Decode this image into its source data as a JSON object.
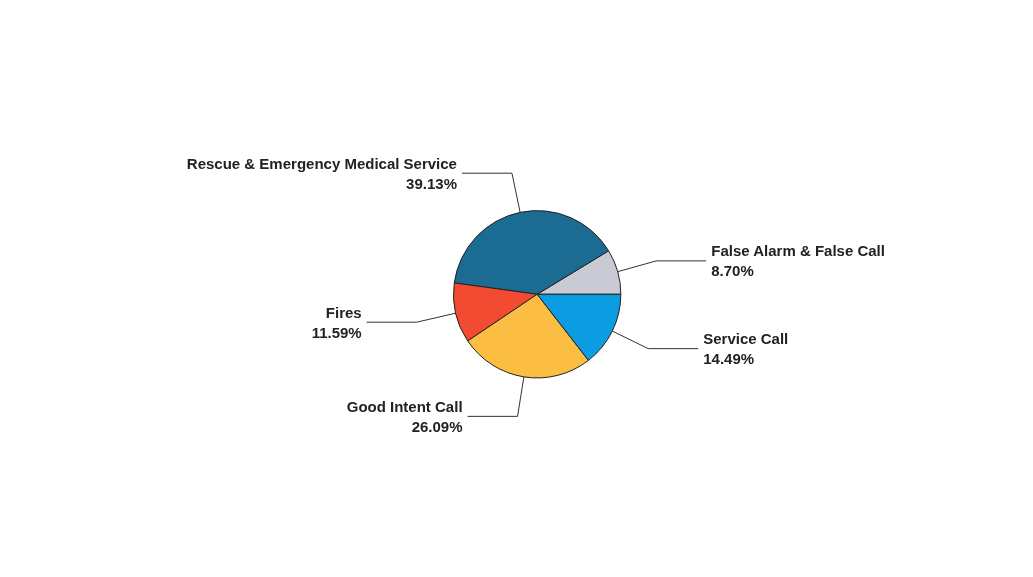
{
  "chart_data": {
    "type": "pie",
    "categories": [
      "False Alarm & False Call",
      "Rescue & Emergency Medical Service",
      "Fires",
      "Good Intent Call",
      "Service Call"
    ],
    "values": [
      8.7,
      39.13,
      11.59,
      26.09,
      14.49
    ],
    "value_labels": [
      "8.70%",
      "39.13%",
      "11.59%",
      "26.09%",
      "14.49%"
    ],
    "colors": [
      "#c9cad3",
      "#1b6b93",
      "#f24b31",
      "#fbbd42",
      "#0b9ce2"
    ],
    "legend": false
  }
}
